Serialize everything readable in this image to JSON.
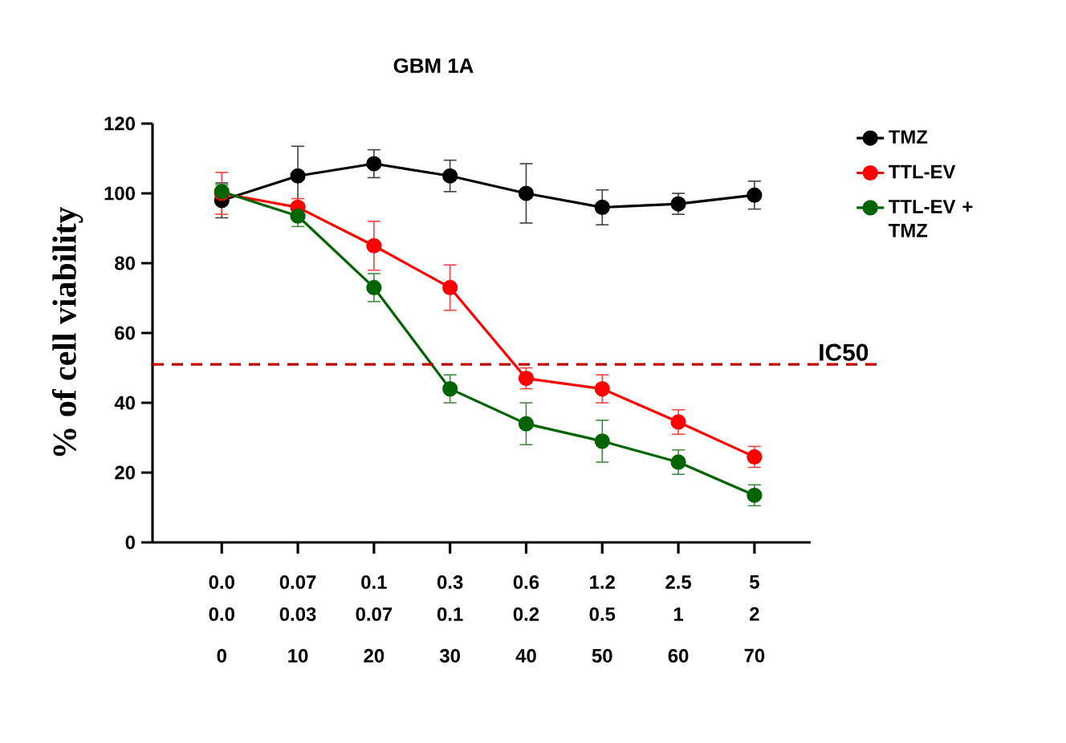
{
  "chart_data": {
    "type": "line",
    "title": "GBM 1A",
    "ylabel": "% of cell viability",
    "categories": [
      "0.0",
      "0.07",
      "0.1",
      "0.3",
      "0.6",
      "1.2",
      "2.5",
      "5"
    ],
    "annotations": [
      "0.0",
      "0.03",
      "0.07",
      "0.1",
      "0.2",
      "0.5",
      "1",
      "2",
      "0",
      "10",
      "20",
      "30",
      "40",
      "50",
      "60",
      "70"
    ],
    "series": [
      {
        "name": "TMZ",
        "color": "#000000",
        "values": [
          98,
          105,
          108.5,
          105,
          100,
          96,
          97,
          99.5
        ],
        "errors": [
          5,
          8.5,
          4,
          4.5,
          8.5,
          5,
          3,
          4
        ]
      },
      {
        "name": "TTL-EV",
        "color": "#ff0000",
        "values": [
          100,
          96,
          85,
          73,
          47,
          44,
          34.5,
          24.5
        ],
        "errors": [
          6,
          2.5,
          7,
          6.5,
          3,
          4,
          3.5,
          3
        ]
      },
      {
        "name": "TTL-EV + TMZ",
        "color": "#006400",
        "values": [
          100.5,
          93.5,
          73,
          44,
          34,
          29,
          23,
          13.5
        ],
        "errors": [
          2,
          3,
          4,
          4,
          6,
          6,
          3.5,
          3
        ]
      }
    ],
    "ylim": [
      0,
      120
    ],
    "yticks": [
      0,
      20,
      40,
      60,
      80,
      100,
      120
    ],
    "ref_lines": [
      {
        "axis": "y",
        "value": 51,
        "label": "IC50",
        "color": "#c00000",
        "line_style": "dashed"
      }
    ],
    "legend": "right",
    "marker": "circle",
    "line_style": "solid",
    "grid": false
  }
}
